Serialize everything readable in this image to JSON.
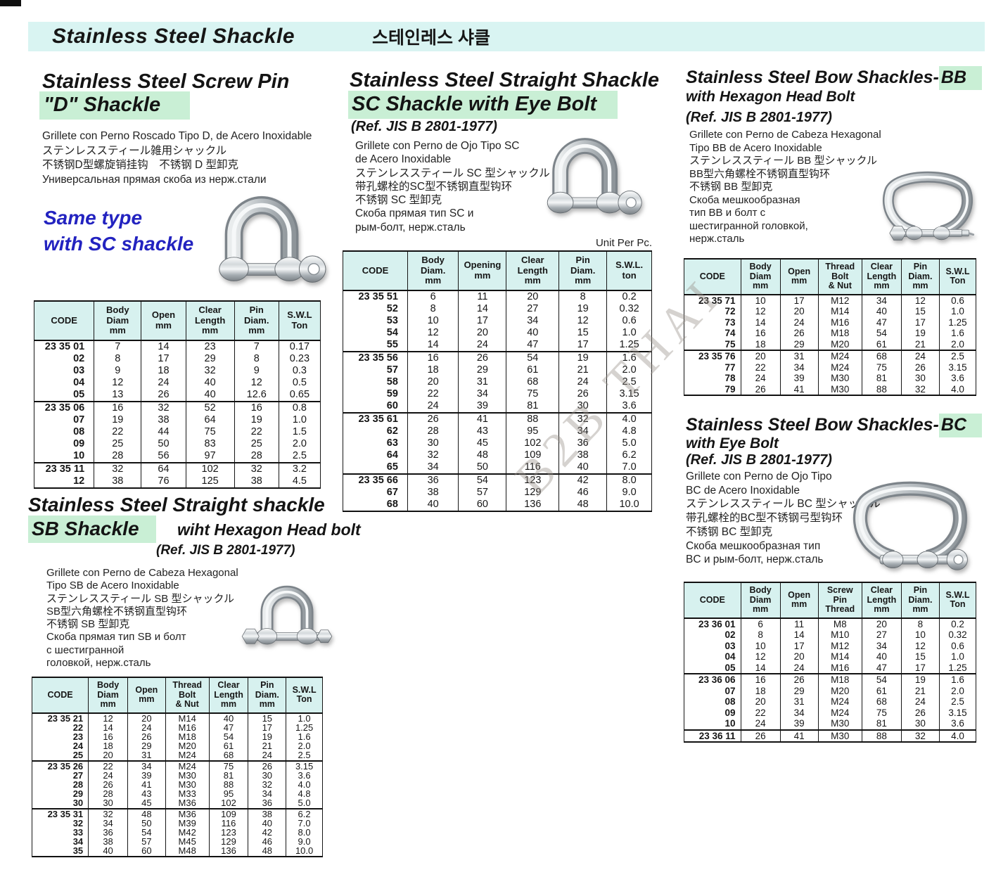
{
  "page": {
    "title_en": "Stainless Steel Shackle",
    "title_ko": "스테인레스 샤클"
  },
  "watermark": "B2B THAI",
  "sections": {
    "d": {
      "title_line1": "Stainless Steel Screw Pin",
      "title_line2": "\"D\" Shackle",
      "desc": [
        "Grillete con Perno Roscado Tipo D, de Acero Inoxidable",
        "ステンレススティール雑用シャックル",
        "不锈钢D型螺旋销挂钩　不锈钢 D 型卸克",
        "Универсальная прямая скоба из нерж.стали"
      ],
      "note_line1": "Same type",
      "note_line2": "with SC shackle"
    },
    "sc": {
      "title_line1": "Stainless Steel Straight Shackle",
      "title_line2": "SC Shackle with Eye Bolt",
      "ref": "(Ref. JIS B 2801-1977)",
      "desc": [
        "Grillete con Perno de Ojo Tipo SC",
        "de Acero Inoxidable",
        "ステンレススティール SC 型シャックル",
        "带孔螺栓的SC型不锈钢直型钩环",
        "不锈钢 SC 型卸克",
        "Скоба прямая тип SC и",
        "рым-болт, нерж.сталь"
      ],
      "unit_note": "Unit Per Pc."
    },
    "bb": {
      "title_main": "Stainless Steel Bow Shackles-",
      "title_hl": "BB",
      "title_line2": "with Hexagon Head Bolt",
      "ref": "(Ref. JIS B 2801-1977)",
      "desc": [
        "Grillete con Perno de Cabeza Hexagonal",
        "Tipo BB de Acero Inoxidable",
        "ステンレススティール BB 型シャックル",
        "BB型六角螺栓不锈钢直型钩环",
        "不锈钢 BB 型卸克",
        "Скоба мешкообразная",
        "тип BB и болт с",
        "шестигранной головкой,",
        "нерж.сталь"
      ]
    },
    "sb": {
      "title_line1": "Stainless Steel  Straight shackle",
      "title_hl": "SB Shackle",
      "title_right": "wiht Hexagon Head bolt",
      "ref": "(Ref. JIS B 2801-1977)",
      "desc": [
        "Grillete con Perno de Cabeza Hexagonal",
        "Tipo SB de Acero Inoxidable",
        "ステンレススティール SB 型シャックル",
        "SB型六角螺栓不锈钢直型钩环",
        "不锈钢 SB 型卸克",
        "Скоба прямая тип SB и болт",
        "с шестигранной",
        "головкой, нерж.сталь"
      ]
    },
    "bc": {
      "title_main": "Stainless Steel Bow Shackles-",
      "title_hl": "BC",
      "title_line2": "with Eye Bolt",
      "ref": "(Ref. JIS B 2801-1977)",
      "desc": [
        "Grillete con Perno de Ojo Tipo",
        "BC de Acero Inoxidable",
        "ステンレススティール BC 型シャックル",
        "带孔螺栓的BC型不锈钢弓型钩环",
        "不锈钢 BC 型卸克",
        "Скоба мешкообразная тип",
        "BC и рым-болт, нерж.сталь"
      ]
    }
  },
  "tables": {
    "d": {
      "headers": [
        [
          "CODE"
        ],
        [
          "Body",
          "Diam",
          "mm"
        ],
        [
          "Open",
          "mm"
        ],
        [
          "Clear",
          "Length",
          "mm"
        ],
        [
          "Pin",
          "Diam.",
          "mm"
        ],
        [
          "S.W.L",
          "Ton"
        ]
      ],
      "groups": [
        [
          [
            "23 35 01",
            "7",
            "14",
            "23",
            "7",
            "0.17"
          ],
          [
            "02",
            "8",
            "17",
            "29",
            "8",
            "0.23"
          ],
          [
            "03",
            "9",
            "18",
            "32",
            "9",
            "0.3"
          ],
          [
            "04",
            "12",
            "24",
            "40",
            "12",
            "0.5"
          ],
          [
            "05",
            "13",
            "26",
            "40",
            "12.6",
            "0.65"
          ]
        ],
        [
          [
            "23 35 06",
            "16",
            "32",
            "52",
            "16",
            "0.8"
          ],
          [
            "07",
            "19",
            "38",
            "64",
            "19",
            "1.0"
          ],
          [
            "08",
            "22",
            "44",
            "75",
            "22",
            "1.5"
          ],
          [
            "09",
            "25",
            "50",
            "83",
            "25",
            "2.0"
          ],
          [
            "10",
            "28",
            "56",
            "97",
            "28",
            "2.5"
          ]
        ],
        [
          [
            "23 35 11",
            "32",
            "64",
            "102",
            "32",
            "3.2"
          ],
          [
            "12",
            "38",
            "76",
            "125",
            "38",
            "4.5"
          ]
        ]
      ]
    },
    "sc": {
      "headers": [
        [
          "CODE"
        ],
        [
          "Body",
          "Diam.",
          "mm"
        ],
        [
          "Opening",
          "mm"
        ],
        [
          "Clear",
          "Length",
          "mm"
        ],
        [
          "Pin",
          "Diam.",
          "mm"
        ],
        [
          "S.W.L.",
          "ton"
        ]
      ],
      "groups": [
        [
          [
            "23 35 51",
            "6",
            "11",
            "20",
            "8",
            "0.2"
          ],
          [
            "52",
            "8",
            "14",
            "27",
            "19",
            "0.32"
          ],
          [
            "53",
            "10",
            "17",
            "34",
            "12",
            "0.6"
          ],
          [
            "54",
            "12",
            "20",
            "40",
            "15",
            "1.0"
          ],
          [
            "55",
            "14",
            "24",
            "47",
            "17",
            "1.25"
          ]
        ],
        [
          [
            "23 35 56",
            "16",
            "26",
            "54",
            "19",
            "1.6"
          ],
          [
            "57",
            "18",
            "29",
            "61",
            "21",
            "2.0"
          ],
          [
            "58",
            "20",
            "31",
            "68",
            "24",
            "2.5"
          ],
          [
            "59",
            "22",
            "34",
            "75",
            "26",
            "3.15"
          ],
          [
            "60",
            "24",
            "39",
            "81",
            "30",
            "3.6"
          ]
        ],
        [
          [
            "23 35 61",
            "26",
            "41",
            "88",
            "32",
            "4.0"
          ],
          [
            "62",
            "28",
            "43",
            "95",
            "34",
            "4.8"
          ],
          [
            "63",
            "30",
            "45",
            "102",
            "36",
            "5.0"
          ],
          [
            "64",
            "32",
            "48",
            "109",
            "38",
            "6.2"
          ],
          [
            "65",
            "34",
            "50",
            "116",
            "40",
            "7.0"
          ]
        ],
        [
          [
            "23 35 66",
            "36",
            "54",
            "123",
            "42",
            "8.0"
          ],
          [
            "67",
            "38",
            "57",
            "129",
            "46",
            "9.0"
          ],
          [
            "68",
            "40",
            "60",
            "136",
            "48",
            "10.0"
          ]
        ]
      ]
    },
    "bb": {
      "headers": [
        [
          "CODE"
        ],
        [
          "Body",
          "Diam",
          "mm"
        ],
        [
          "Open",
          "mm"
        ],
        [
          "Thread",
          "Bolt",
          "& Nut"
        ],
        [
          "Clear",
          "Length",
          "mm"
        ],
        [
          "Pin",
          "Diam.",
          "mm"
        ],
        [
          "S.W.L",
          "Ton"
        ]
      ],
      "groups": [
        [
          [
            "23 35 71",
            "10",
            "17",
            "M12",
            "34",
            "12",
            "0.6"
          ],
          [
            "72",
            "12",
            "20",
            "M14",
            "40",
            "15",
            "1.0"
          ],
          [
            "73",
            "14",
            "24",
            "M16",
            "47",
            "17",
            "1.25"
          ],
          [
            "74",
            "16",
            "26",
            "M18",
            "54",
            "19",
            "1.6"
          ],
          [
            "75",
            "18",
            "29",
            "M20",
            "61",
            "21",
            "2.0"
          ]
        ],
        [
          [
            "23 35 76",
            "20",
            "31",
            "M24",
            "68",
            "24",
            "2.5"
          ],
          [
            "77",
            "22",
            "34",
            "M24",
            "75",
            "26",
            "3.15"
          ],
          [
            "78",
            "24",
            "39",
            "M30",
            "81",
            "30",
            "3.6"
          ],
          [
            "79",
            "26",
            "41",
            "M30",
            "88",
            "32",
            "4.0"
          ]
        ]
      ]
    },
    "sb": {
      "headers": [
        [
          "CODE"
        ],
        [
          "Body",
          "Diam",
          "mm"
        ],
        [
          "Open",
          "mm"
        ],
        [
          "Thread",
          "Bolt",
          "& Nut"
        ],
        [
          "Clear",
          "Length",
          "mm"
        ],
        [
          "Pin",
          "Diam.",
          "mm"
        ],
        [
          "S.W.L",
          "Ton"
        ]
      ],
      "groups": [
        [
          [
            "23 35 21",
            "12",
            "20",
            "M14",
            "40",
            "15",
            "1.0"
          ],
          [
            "22",
            "14",
            "24",
            "M16",
            "47",
            "17",
            "1.25"
          ],
          [
            "23",
            "16",
            "26",
            "M18",
            "54",
            "19",
            "1.6"
          ],
          [
            "24",
            "18",
            "29",
            "M20",
            "61",
            "21",
            "2.0"
          ],
          [
            "25",
            "20",
            "31",
            "M24",
            "68",
            "24",
            "2.5"
          ]
        ],
        [
          [
            "23 35 26",
            "22",
            "34",
            "M24",
            "75",
            "26",
            "3.15"
          ],
          [
            "27",
            "24",
            "39",
            "M30",
            "81",
            "30",
            "3.6"
          ],
          [
            "28",
            "26",
            "41",
            "M30",
            "88",
            "32",
            "4.0"
          ],
          [
            "29",
            "28",
            "43",
            "M33",
            "95",
            "34",
            "4.8"
          ],
          [
            "30",
            "30",
            "45",
            "M36",
            "102",
            "36",
            "5.0"
          ]
        ],
        [
          [
            "23 35 31",
            "32",
            "48",
            "M36",
            "109",
            "38",
            "6.2"
          ],
          [
            "32",
            "34",
            "50",
            "M39",
            "116",
            "40",
            "7.0"
          ],
          [
            "33",
            "36",
            "54",
            "M42",
            "123",
            "42",
            "8.0"
          ],
          [
            "34",
            "38",
            "57",
            "M45",
            "129",
            "46",
            "9.0"
          ],
          [
            "35",
            "40",
            "60",
            "M48",
            "136",
            "48",
            "10.0"
          ]
        ]
      ]
    },
    "bc": {
      "headers": [
        [
          "CODE"
        ],
        [
          "Body",
          "Diam",
          "mm"
        ],
        [
          "Open",
          "mm"
        ],
        [
          "Screw",
          "Pin",
          "Thread"
        ],
        [
          "Clear",
          "Length",
          "mm"
        ],
        [
          "Pin",
          "Diam.",
          "mm"
        ],
        [
          "S.W.L",
          "Ton"
        ]
      ],
      "groups": [
        [
          [
            "23 36 01",
            "6",
            "11",
            "M8",
            "20",
            "8",
            "0.2"
          ],
          [
            "02",
            "8",
            "14",
            "M10",
            "27",
            "10",
            "0.32"
          ],
          [
            "03",
            "10",
            "17",
            "M12",
            "34",
            "12",
            "0.6"
          ],
          [
            "04",
            "12",
            "20",
            "M14",
            "40",
            "15",
            "1.0"
          ],
          [
            "05",
            "14",
            "24",
            "M16",
            "47",
            "17",
            "1.25"
          ]
        ],
        [
          [
            "23 36 06",
            "16",
            "26",
            "M18",
            "54",
            "19",
            "1.6"
          ],
          [
            "07",
            "18",
            "29",
            "M20",
            "61",
            "21",
            "2.0"
          ],
          [
            "08",
            "20",
            "31",
            "M24",
            "68",
            "24",
            "2.5"
          ],
          [
            "09",
            "22",
            "34",
            "M24",
            "75",
            "26",
            "3.15"
          ],
          [
            "10",
            "24",
            "39",
            "M30",
            "81",
            "30",
            "3.6"
          ]
        ],
        [
          [
            "23 36 11",
            "26",
            "41",
            "M30",
            "88",
            "32",
            "4.0"
          ]
        ]
      ]
    }
  }
}
